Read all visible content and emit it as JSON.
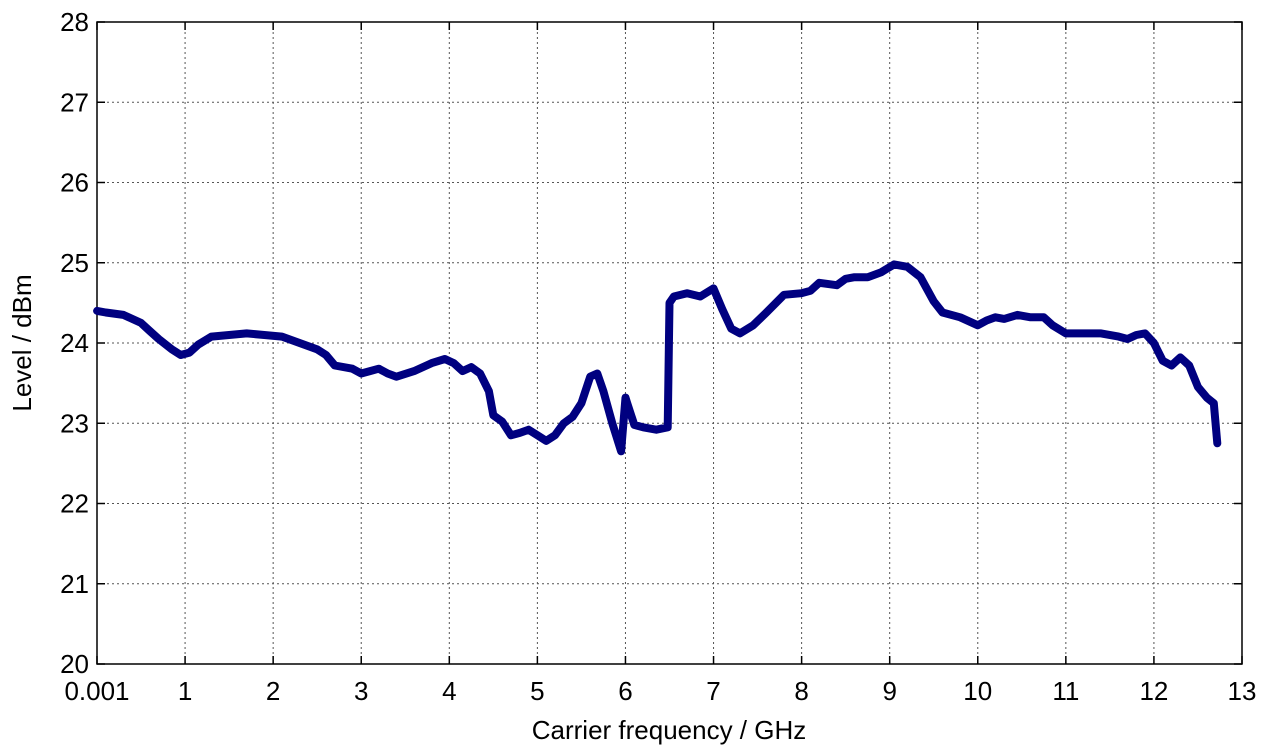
{
  "chart_data": {
    "type": "line",
    "xlabel": "Carrier frequency / GHz",
    "ylabel": "Level / dBm",
    "xlim": [
      0,
      13
    ],
    "ylim": [
      20,
      28
    ],
    "grid": true,
    "x_ticks": [
      0,
      1,
      2,
      3,
      4,
      5,
      6,
      7,
      8,
      9,
      10,
      11,
      12,
      13
    ],
    "x_tick_labels": [
      "0.001",
      "1",
      "2",
      "3",
      "4",
      "5",
      "6",
      "7",
      "8",
      "9",
      "10",
      "11",
      "12",
      "13"
    ],
    "y_ticks": [
      20,
      21,
      22,
      23,
      24,
      25,
      26,
      27,
      28
    ],
    "y_tick_labels": [
      "20",
      "21",
      "22",
      "23",
      "24",
      "25",
      "26",
      "27",
      "28"
    ],
    "line_color": "#000080",
    "series": [
      {
        "x": [
          0.001,
          0.1,
          0.3,
          0.5,
          0.6,
          0.7,
          0.85,
          0.95,
          1.05,
          1.15,
          1.3,
          1.5,
          1.7,
          1.9,
          2.1,
          2.3,
          2.5,
          2.6,
          2.7,
          2.9,
          3.0,
          3.1,
          3.2,
          3.3,
          3.4,
          3.6,
          3.8,
          3.95,
          4.05,
          4.15,
          4.25,
          4.35,
          4.45,
          4.5,
          4.6,
          4.7,
          4.8,
          4.9,
          5.0,
          5.1,
          5.2,
          5.3,
          5.4,
          5.5,
          5.6,
          5.68,
          5.75,
          5.85,
          5.95,
          6.0,
          6.02,
          6.1,
          6.2,
          6.35,
          6.48,
          6.5,
          6.55,
          6.7,
          6.85,
          7.0,
          7.1,
          7.2,
          7.3,
          7.45,
          7.6,
          7.8,
          8.0,
          8.1,
          8.2,
          8.4,
          8.5,
          8.6,
          8.75,
          8.9,
          9.05,
          9.2,
          9.35,
          9.5,
          9.6,
          9.8,
          10.0,
          10.1,
          10.2,
          10.3,
          10.45,
          10.6,
          10.75,
          10.85,
          11.0,
          11.2,
          11.4,
          11.6,
          11.7,
          11.8,
          11.9,
          12.0,
          12.1,
          12.2,
          12.3,
          12.4,
          12.5,
          12.6,
          12.68,
          12.72
        ],
        "y": [
          24.4,
          24.38,
          24.35,
          24.25,
          24.15,
          24.05,
          23.92,
          23.85,
          23.88,
          23.98,
          24.08,
          24.1,
          24.12,
          24.1,
          24.08,
          24.0,
          23.92,
          23.85,
          23.72,
          23.68,
          23.62,
          23.65,
          23.68,
          23.62,
          23.58,
          23.65,
          23.75,
          23.8,
          23.75,
          23.65,
          23.7,
          23.62,
          23.4,
          23.1,
          23.02,
          22.85,
          22.88,
          22.92,
          22.85,
          22.78,
          22.85,
          23.0,
          23.08,
          23.25,
          23.58,
          23.62,
          23.4,
          23.0,
          22.65,
          23.32,
          23.25,
          22.98,
          22.95,
          22.92,
          22.95,
          24.5,
          24.58,
          24.62,
          24.58,
          24.68,
          24.42,
          24.18,
          24.12,
          24.22,
          24.38,
          24.6,
          24.62,
          24.65,
          24.75,
          24.72,
          24.8,
          24.82,
          24.82,
          24.88,
          24.98,
          24.95,
          24.82,
          24.52,
          24.38,
          24.32,
          24.22,
          24.28,
          24.32,
          24.3,
          24.35,
          24.32,
          24.32,
          24.22,
          24.12,
          24.12,
          24.12,
          24.08,
          24.05,
          24.1,
          24.12,
          24.0,
          23.78,
          23.72,
          23.82,
          23.72,
          23.45,
          23.32,
          23.25,
          22.75
        ]
      }
    ]
  }
}
